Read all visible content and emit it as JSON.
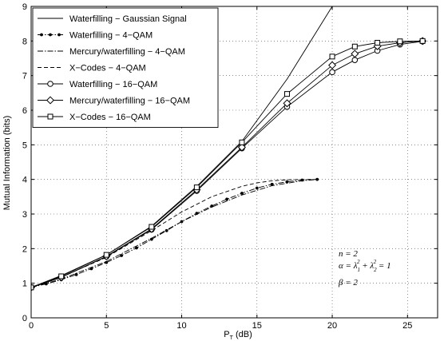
{
  "chart_data": {
    "type": "line",
    "xlabel": "P_T (dB)",
    "ylabel": "Mutual Information (bits)",
    "xlim": [
      0,
      27
    ],
    "ylim": [
      0,
      9
    ],
    "xticks": [
      0,
      5,
      10,
      15,
      20,
      25
    ],
    "yticks": [
      0,
      1,
      2,
      3,
      4,
      5,
      6,
      7,
      8,
      9
    ],
    "grid": true,
    "legend_position": "top-left",
    "annotations": [
      "n = 2",
      "α = λ₁² + λ₂² = 1",
      "β = 2"
    ],
    "series": [
      {
        "name": "Waterfilling − Gaussian Signal",
        "style": "solid",
        "marker": "none",
        "x": [
          0,
          2,
          5,
          8,
          11,
          14,
          17,
          20
        ],
        "y": [
          0.88,
          1.22,
          1.82,
          2.65,
          3.8,
          5.1,
          6.9,
          9.0
        ]
      },
      {
        "name": "Waterfilling − 4−QAM",
        "style": "dashdot",
        "marker": "dot",
        "x": [
          0,
          1,
          2,
          3,
          4,
          5,
          6,
          7,
          8,
          9,
          10,
          11,
          12,
          13,
          14,
          15,
          16,
          17,
          18,
          19
        ],
        "y": [
          0.88,
          0.98,
          1.1,
          1.25,
          1.42,
          1.6,
          1.8,
          2.02,
          2.27,
          2.52,
          2.78,
          3.02,
          3.23,
          3.43,
          3.6,
          3.75,
          3.86,
          3.93,
          3.98,
          4.0
        ]
      },
      {
        "name": "Mercury/waterfilling − 4−QAM",
        "style": "dashdot",
        "marker": "none",
        "x": [
          0,
          2,
          5,
          8,
          10,
          12,
          14,
          16,
          18,
          19
        ],
        "y": [
          0.88,
          1.12,
          1.63,
          2.3,
          2.78,
          3.2,
          3.55,
          3.82,
          3.96,
          4.0
        ]
      },
      {
        "name": "X−Codes − 4−QAM",
        "style": "dashed",
        "marker": "none",
        "x": [
          0,
          2,
          5,
          8,
          10,
          12,
          14,
          15,
          16,
          17,
          18,
          19
        ],
        "y": [
          0.88,
          1.18,
          1.75,
          2.52,
          3.06,
          3.5,
          3.8,
          3.9,
          3.96,
          3.99,
          4.0,
          4.0
        ]
      },
      {
        "name": "Waterfilling − 16−QAM",
        "style": "solid",
        "marker": "circle",
        "x": [
          0,
          2,
          5,
          8,
          11,
          14,
          17,
          20,
          21.5,
          23,
          24.5,
          26
        ],
        "y": [
          0.88,
          1.17,
          1.77,
          2.55,
          3.67,
          4.9,
          6.1,
          7.1,
          7.45,
          7.72,
          7.9,
          7.99
        ]
      },
      {
        "name": "Mercury/waterfilling − 16−QAM",
        "style": "solid",
        "marker": "diamond",
        "x": [
          0,
          2,
          5,
          8,
          11,
          14,
          17,
          20,
          21.5,
          23,
          24.5,
          26
        ],
        "y": [
          0.88,
          1.17,
          1.78,
          2.57,
          3.7,
          4.93,
          6.2,
          7.3,
          7.63,
          7.85,
          7.95,
          8.0
        ]
      },
      {
        "name": "X−Codes − 16−QAM",
        "style": "solid",
        "marker": "square",
        "x": [
          0,
          2,
          5,
          8,
          11,
          14,
          17,
          20,
          21.5,
          23,
          24.5,
          26
        ],
        "y": [
          0.88,
          1.2,
          1.82,
          2.63,
          3.77,
          5.07,
          6.47,
          7.55,
          7.84,
          7.95,
          7.99,
          8.0
        ]
      }
    ]
  }
}
